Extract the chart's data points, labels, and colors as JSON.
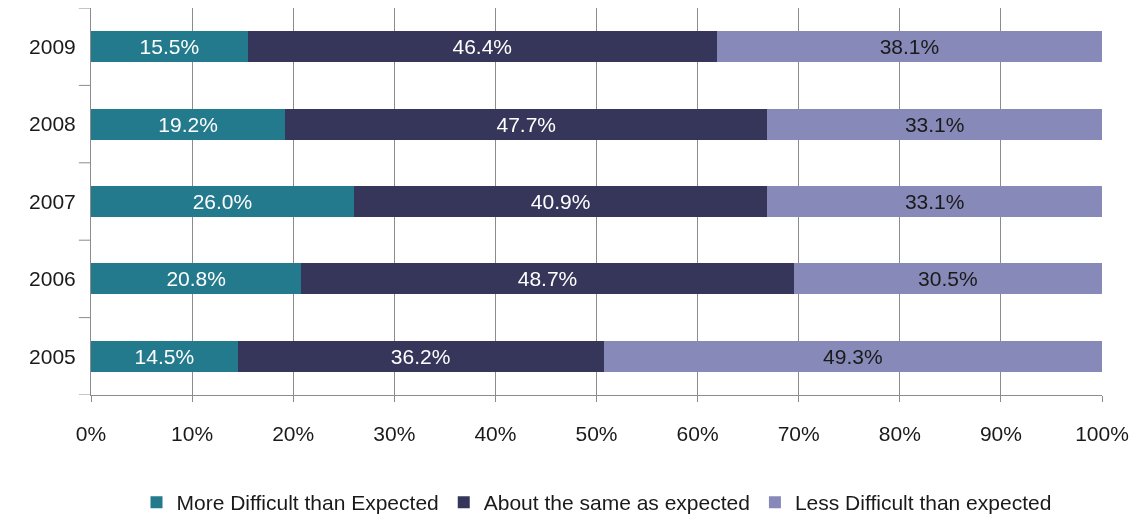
{
  "chart_data": {
    "type": "bar",
    "orientation": "horizontal",
    "stacked": true,
    "categories": [
      "2009",
      "2008",
      "2007",
      "2006",
      "2005"
    ],
    "series": [
      {
        "name": "More Difficult than Expected",
        "color": "#237a8c",
        "values": [
          15.5,
          19.2,
          26.0,
          20.8,
          14.5
        ],
        "value_labels": [
          "15.5%",
          "19.2%",
          "26.0%",
          "20.8%",
          "14.5%"
        ]
      },
      {
        "name": "About the same as expected",
        "color": "#35365a",
        "values": [
          46.4,
          47.7,
          40.9,
          48.7,
          36.2
        ],
        "value_labels": [
          "46.4%",
          "47.7%",
          "40.9%",
          "48.7%",
          "36.2%"
        ]
      },
      {
        "name": "Less Difficult than expected",
        "color": "#8789b8",
        "values": [
          38.1,
          33.1,
          33.1,
          30.5,
          49.3
        ],
        "value_labels": [
          "38.1%",
          "33.1%",
          "33.1%",
          "30.5%",
          "49.3%"
        ]
      }
    ],
    "xlim": [
      0,
      100
    ],
    "xticks": [
      {
        "value": 0,
        "label": "0%"
      },
      {
        "value": 10,
        "label": "10%"
      },
      {
        "value": 20,
        "label": "20%"
      },
      {
        "value": 30,
        "label": "30%"
      },
      {
        "value": 40,
        "label": "40%"
      },
      {
        "value": 50,
        "label": "50%"
      },
      {
        "value": 60,
        "label": "60%"
      },
      {
        "value": 70,
        "label": "70%"
      },
      {
        "value": 80,
        "label": "80%"
      },
      {
        "value": 90,
        "label": "90%"
      },
      {
        "value": 100,
        "label": "100%"
      }
    ],
    "grid": "x",
    "legend": "bottom"
  }
}
